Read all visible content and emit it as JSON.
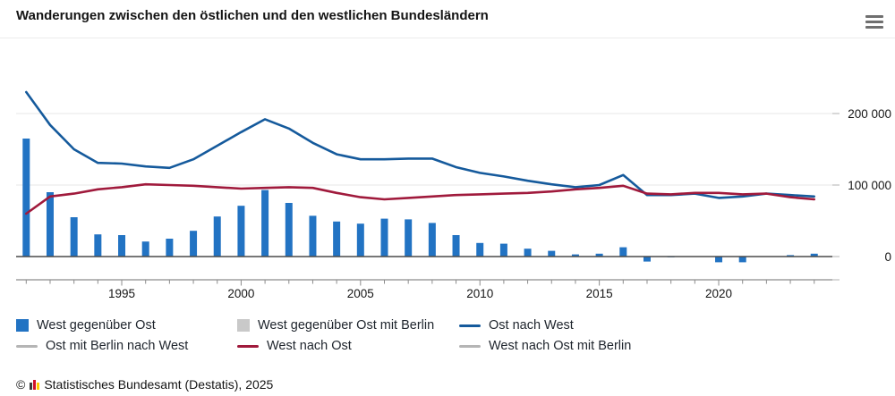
{
  "header": {
    "title": "Wanderungen zwischen den östlichen und den westlichen Bundesländern"
  },
  "chart_data": {
    "type": "bar",
    "subtype": "bar+line combination",
    "x": [
      1991,
      1992,
      1993,
      1994,
      1995,
      1996,
      1997,
      1998,
      1999,
      2000,
      2001,
      2002,
      2003,
      2004,
      2005,
      2006,
      2007,
      2008,
      2009,
      2010,
      2011,
      2012,
      2013,
      2014,
      2015,
      2016,
      2017,
      2018,
      2019,
      2020,
      2021,
      2022,
      2023,
      2024
    ],
    "series": [
      {
        "name": "West gegenüber Ost",
        "type": "bar",
        "color": "#2273c3",
        "values": [
          165000,
          90000,
          55000,
          31000,
          30000,
          21000,
          25000,
          36000,
          56000,
          71000,
          93000,
          75000,
          57000,
          49000,
          46000,
          53000,
          52000,
          47000,
          30000,
          19000,
          18000,
          11000,
          8000,
          3000,
          4000,
          13000,
          -7000,
          -1000,
          0,
          -8000,
          -8000,
          0,
          2000,
          4000
        ]
      },
      {
        "name": "Ost nach West",
        "type": "line",
        "color": "#155a9c",
        "values": [
          230000,
          184000,
          150000,
          131000,
          130000,
          126000,
          124000,
          136000,
          155000,
          174000,
          192000,
          179000,
          159000,
          143000,
          136000,
          136000,
          137000,
          137000,
          125000,
          117000,
          112000,
          106000,
          101000,
          97000,
          100000,
          114000,
          86000,
          86000,
          88000,
          82000,
          84000,
          88000,
          86000,
          84000
        ]
      },
      {
        "name": "West nach Ost",
        "type": "line",
        "color": "#a01a3c",
        "values": [
          60000,
          84000,
          88000,
          94000,
          97000,
          101000,
          100000,
          99000,
          97000,
          95000,
          96000,
          97000,
          96000,
          89000,
          83000,
          80000,
          82000,
          84000,
          86000,
          87000,
          88000,
          89000,
          91000,
          94000,
          96000,
          99000,
          88000,
          87000,
          89000,
          89000,
          87000,
          88000,
          83000,
          80000
        ]
      }
    ],
    "title": "Wanderungen zwischen den östlichen und den westlichen Bundesländern",
    "xlabel": "",
    "ylabel": "",
    "xlim": [
      1990.5,
      2024.8
    ],
    "ylim": [
      -32500,
      283750
    ],
    "grid": "horizontal, light gray at 100 000 and 200 000",
    "legend_position": "bottom, 3 columns",
    "y_ticks": [
      {
        "value": 0,
        "label": "0"
      },
      {
        "value": 100000,
        "label": "100 000"
      },
      {
        "value": 200000,
        "label": "200 000"
      }
    ],
    "x_tick_labels": [
      1995,
      2000,
      2005,
      2010,
      2015,
      2020
    ]
  },
  "legend": {
    "items": [
      {
        "label": "West gegenüber Ost",
        "marker": "square",
        "color": "#2273c3",
        "active": true
      },
      {
        "label": "West gegenüber Ost mit Berlin",
        "marker": "square",
        "color": "#c9c9c9",
        "active": false
      },
      {
        "label": "Ost nach West",
        "marker": "line",
        "color": "#155a9c",
        "active": true
      },
      {
        "label": "Ost mit Berlin nach West",
        "marker": "line",
        "color": "#b5b5b5",
        "active": false
      },
      {
        "label": "West nach Ost",
        "marker": "line",
        "color": "#a01a3c",
        "active": true
      },
      {
        "label": "West nach Ost mit Berlin",
        "marker": "line",
        "color": "#b5b5b5",
        "active": false
      }
    ]
  },
  "footer": {
    "prefix": "©",
    "source": "Statistisches Bundesamt (Destatis), 2025"
  },
  "colors": {
    "bar_blue": "#2273c3",
    "line_blue": "#155a9c",
    "line_red": "#a01a3c",
    "inactive_gray": "#c9c9c9",
    "gridline": "#e7e7e7",
    "zero_line": "#4a4a4a",
    "axis": "#8c8c8c"
  }
}
